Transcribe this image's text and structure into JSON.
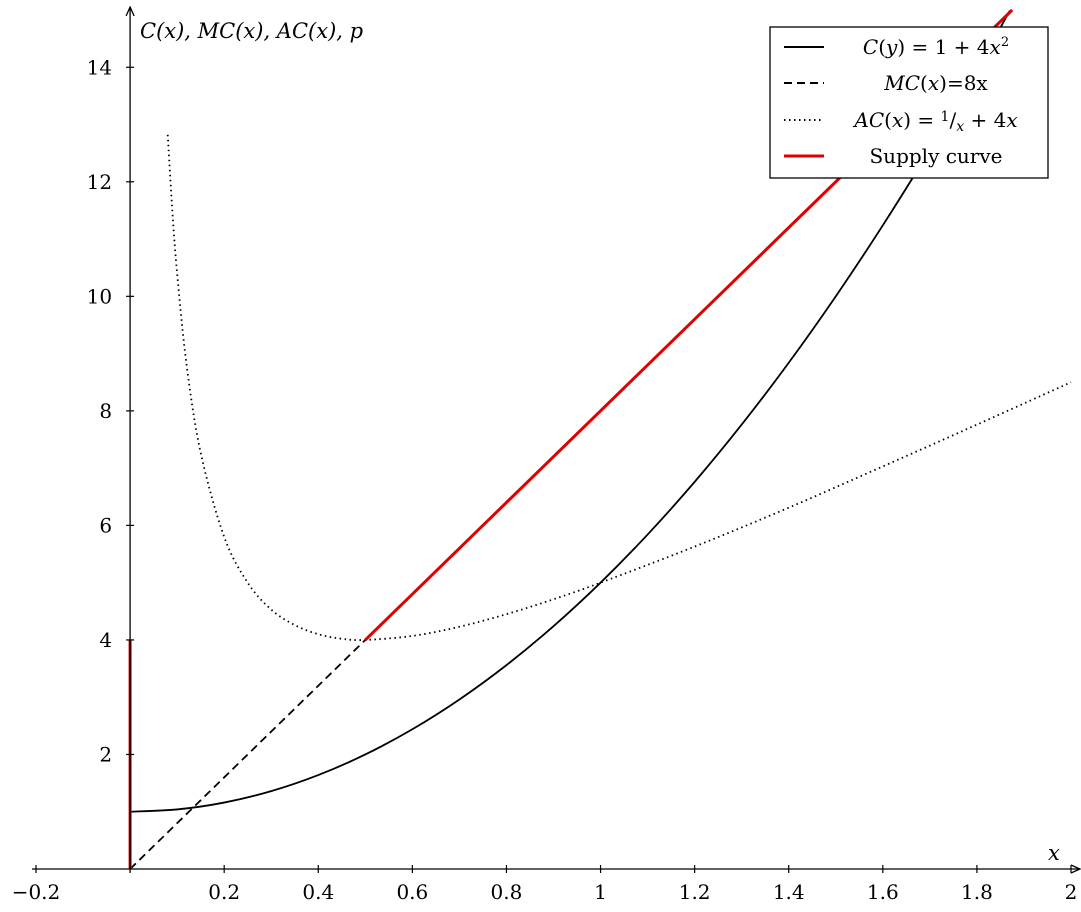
{
  "chart_data": {
    "type": "line",
    "title": "",
    "xlabel": "x",
    "ylabel": "C(x), MC(x), AC(x), p",
    "xlim": [
      -0.2,
      2.0
    ],
    "ylim": [
      0,
      15
    ],
    "grid": false,
    "legend_position": "top-right",
    "x_ticks": [
      -0.2,
      0.2,
      0.4,
      0.6,
      0.8,
      1,
      1.2,
      1.4,
      1.6,
      1.8,
      2
    ],
    "x_tick_labels": [
      "−0.2",
      "0.2",
      "0.4",
      "0.6",
      "0.8",
      "1",
      "1.2",
      "1.4",
      "1.6",
      "1.8",
      "2"
    ],
    "y_ticks": [
      2,
      4,
      6,
      8,
      10,
      12,
      14
    ],
    "y_tick_labels": [
      "2",
      "4",
      "6",
      "8",
      "10",
      "12",
      "14"
    ],
    "series": [
      {
        "name": "C(y) = 1 + 4x²",
        "style": "solid",
        "color": "#000000",
        "x": [
          0,
          0.1,
          0.2,
          0.3,
          0.4,
          0.5,
          0.6,
          0.7,
          0.8,
          0.9,
          1.0,
          1.1,
          1.2,
          1.3,
          1.4,
          1.5,
          1.6,
          1.7,
          1.8,
          1.87
        ],
        "y": [
          1,
          1.04,
          1.16,
          1.36,
          1.64,
          2,
          2.44,
          2.96,
          3.56,
          4.24,
          5,
          5.84,
          6.76,
          7.76,
          8.84,
          10,
          11.24,
          12.56,
          13.96,
          14.99
        ]
      },
      {
        "name": "MC(x)=8x",
        "style": "dashed",
        "color": "#000000",
        "x": [
          0,
          0.5
        ],
        "y": [
          0,
          4
        ]
      },
      {
        "name": "AC(x) = 1/x + 4x",
        "style": "dotted",
        "color": "#000000",
        "x": [
          0.08,
          0.09,
          0.1,
          0.12,
          0.15,
          0.2,
          0.25,
          0.3,
          0.35,
          0.4,
          0.45,
          0.5,
          0.6,
          0.7,
          0.8,
          0.9,
          1.0,
          1.2,
          1.4,
          1.6,
          1.8,
          2.0
        ],
        "y": [
          12.82,
          11.47,
          10.4,
          8.81,
          7.27,
          5.8,
          5,
          4.53,
          4.26,
          4.1,
          4.02,
          4,
          4.07,
          4.23,
          4.45,
          4.71,
          5,
          5.63,
          6.31,
          7.03,
          7.76,
          8.5
        ]
      },
      {
        "name": "Supply curve",
        "style": "solid",
        "color": "#e00000",
        "segments": [
          {
            "x": [
              0,
              0
            ],
            "y": [
              0,
              4
            ]
          },
          {
            "x": [
              0.5,
              1.875
            ],
            "y": [
              4,
              15
            ]
          }
        ]
      }
    ],
    "legend": [
      {
        "label_prefix": "C",
        "label_parts": "C(y) = 1 + 4x²",
        "style": "solid",
        "color": "#000000"
      },
      {
        "label_parts": "MC(x)=8x",
        "style": "dashed",
        "color": "#000000"
      },
      {
        "label_parts": "AC(x) = 1/x + 4x",
        "style": "dotted",
        "color": "#000000"
      },
      {
        "label_parts": "Supply curve",
        "style": "solid",
        "color": "#e00000"
      }
    ]
  }
}
